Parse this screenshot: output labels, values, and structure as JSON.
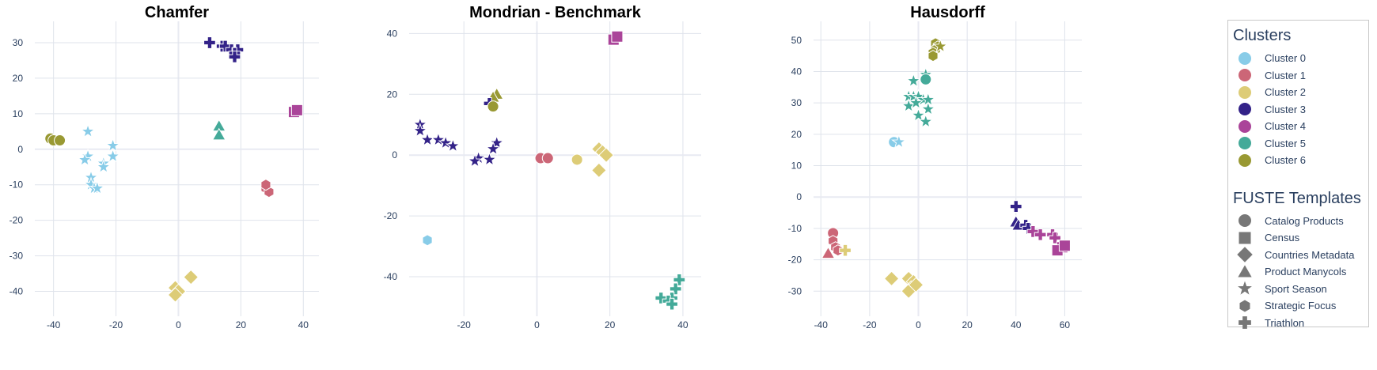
{
  "legend": {
    "clusters_title": "Clusters",
    "templates_title": "FUSTE Templates",
    "clusters": [
      {
        "label": "Cluster 0",
        "color": "#88cce8"
      },
      {
        "label": "Cluster 1",
        "color": "#cc6677"
      },
      {
        "label": "Cluster 2",
        "color": "#ddcc77"
      },
      {
        "label": "Cluster 3",
        "color": "#332288"
      },
      {
        "label": "Cluster 4",
        "color": "#aa4499"
      },
      {
        "label": "Cluster 5",
        "color": "#44aa99"
      },
      {
        "label": "Cluster 6",
        "color": "#999933"
      }
    ],
    "templates": [
      {
        "label": "Catalog Products",
        "symbol": "circle"
      },
      {
        "label": "Census",
        "symbol": "square"
      },
      {
        "label": "Countries Metadata",
        "symbol": "diamond"
      },
      {
        "label": "Product Manycols",
        "symbol": "triangle"
      },
      {
        "label": "Sport Season",
        "symbol": "star"
      },
      {
        "label": "Strategic Focus",
        "symbol": "hexagon"
      },
      {
        "label": "Triathlon",
        "symbol": "cross"
      }
    ]
  },
  "chart_data": [
    {
      "type": "scatter",
      "title": "Chamfer",
      "xlim": [
        -46,
        45
      ],
      "ylim": [
        -47,
        36
      ],
      "xticks": [
        -40,
        -20,
        0,
        20,
        40
      ],
      "yticks": [
        -40,
        -30,
        -20,
        -10,
        0,
        10,
        20,
        30
      ],
      "points": [
        {
          "x": 10,
          "y": 30,
          "c": 3,
          "s": "cross"
        },
        {
          "x": 14,
          "y": 29,
          "c": 3,
          "s": "cross"
        },
        {
          "x": 15,
          "y": 29,
          "c": 3,
          "s": "cross"
        },
        {
          "x": 17,
          "y": 28,
          "c": 3,
          "s": "cross"
        },
        {
          "x": 19,
          "y": 28,
          "c": 3,
          "s": "cross"
        },
        {
          "x": 18,
          "y": 27,
          "c": 3,
          "s": "cross"
        },
        {
          "x": 18,
          "y": 26,
          "c": 3,
          "s": "cross"
        },
        {
          "x": 37,
          "y": 10.5,
          "c": 4,
          "s": "square"
        },
        {
          "x": 38,
          "y": 11,
          "c": 4,
          "s": "square"
        },
        {
          "x": 13,
          "y": 6.5,
          "c": 5,
          "s": "triangle"
        },
        {
          "x": 13,
          "y": 4,
          "c": 5,
          "s": "triangle"
        },
        {
          "x": 28,
          "y": -11,
          "c": 1,
          "s": "hexagon"
        },
        {
          "x": 29,
          "y": -12,
          "c": 1,
          "s": "hexagon"
        },
        {
          "x": 28,
          "y": -10,
          "c": 1,
          "s": "hexagon"
        },
        {
          "x": -41,
          "y": 3,
          "c": 6,
          "s": "circle"
        },
        {
          "x": -40,
          "y": 2.5,
          "c": 6,
          "s": "circle"
        },
        {
          "x": -38,
          "y": 2.5,
          "c": 6,
          "s": "circle"
        },
        {
          "x": -29,
          "y": 5,
          "c": 0,
          "s": "star"
        },
        {
          "x": -21,
          "y": 1,
          "c": 0,
          "s": "star"
        },
        {
          "x": -21,
          "y": -2,
          "c": 0,
          "s": "star"
        },
        {
          "x": -29,
          "y": -2,
          "c": 0,
          "s": "star"
        },
        {
          "x": -30,
          "y": -3,
          "c": 0,
          "s": "star"
        },
        {
          "x": -24,
          "y": -4,
          "c": 0,
          "s": "star"
        },
        {
          "x": -24,
          "y": -5,
          "c": 0,
          "s": "star"
        },
        {
          "x": -28,
          "y": -8,
          "c": 0,
          "s": "star"
        },
        {
          "x": -28,
          "y": -10,
          "c": 0,
          "s": "star"
        },
        {
          "x": -27,
          "y": -11,
          "c": 0,
          "s": "star"
        },
        {
          "x": -26,
          "y": -11,
          "c": 0,
          "s": "star"
        },
        {
          "x": 4,
          "y": -36,
          "c": 2,
          "s": "diamond"
        },
        {
          "x": -1,
          "y": -39,
          "c": 2,
          "s": "diamond"
        },
        {
          "x": 0,
          "y": -40,
          "c": 2,
          "s": "diamond"
        },
        {
          "x": -1,
          "y": -41,
          "c": 2,
          "s": "diamond"
        }
      ]
    },
    {
      "type": "scatter",
      "title": "Mondrian - Benchmark",
      "xlim": [
        -35,
        45
      ],
      "ylim": [
        -53,
        44
      ],
      "xticks": [
        -20,
        0,
        20,
        40
      ],
      "yticks": [
        -40,
        -20,
        0,
        20,
        40
      ],
      "points": [
        {
          "x": 21,
          "y": 38,
          "c": 4,
          "s": "square"
        },
        {
          "x": 22,
          "y": 39,
          "c": 4,
          "s": "square"
        },
        {
          "x": -11,
          "y": 20,
          "c": 6,
          "s": "triangle"
        },
        {
          "x": -12,
          "y": 19,
          "c": 6,
          "s": "triangle"
        },
        {
          "x": -13,
          "y": 17,
          "c": 3,
          "s": "cross"
        },
        {
          "x": -12,
          "y": 16,
          "c": 6,
          "s": "circle"
        },
        {
          "x": -32,
          "y": 10,
          "c": 3,
          "s": "star"
        },
        {
          "x": -32,
          "y": 8,
          "c": 3,
          "s": "star"
        },
        {
          "x": -30,
          "y": 5,
          "c": 3,
          "s": "star"
        },
        {
          "x": -27,
          "y": 5,
          "c": 3,
          "s": "star"
        },
        {
          "x": -25,
          "y": 4,
          "c": 3,
          "s": "star"
        },
        {
          "x": -23,
          "y": 3,
          "c": 3,
          "s": "star"
        },
        {
          "x": -11,
          "y": 4,
          "c": 3,
          "s": "star"
        },
        {
          "x": -12,
          "y": 2,
          "c": 3,
          "s": "star"
        },
        {
          "x": -16,
          "y": -1,
          "c": 3,
          "s": "star"
        },
        {
          "x": -17,
          "y": -2,
          "c": 3,
          "s": "star"
        },
        {
          "x": -13,
          "y": -1.5,
          "c": 3,
          "s": "star"
        },
        {
          "x": 1,
          "y": -1,
          "c": 1,
          "s": "circle"
        },
        {
          "x": 3,
          "y": -1,
          "c": 1,
          "s": "circle"
        },
        {
          "x": 11,
          "y": -1.5,
          "c": 2,
          "s": "circle"
        },
        {
          "x": 17,
          "y": 2,
          "c": 2,
          "s": "diamond"
        },
        {
          "x": 18,
          "y": 1,
          "c": 2,
          "s": "diamond"
        },
        {
          "x": 19,
          "y": 0,
          "c": 2,
          "s": "diamond"
        },
        {
          "x": 17,
          "y": -5,
          "c": 2,
          "s": "diamond"
        },
        {
          "x": -30,
          "y": -28,
          "c": 0,
          "s": "hexagon"
        },
        {
          "x": 39,
          "y": -41,
          "c": 5,
          "s": "cross"
        },
        {
          "x": 38,
          "y": -44,
          "c": 5,
          "s": "cross"
        },
        {
          "x": 34,
          "y": -47,
          "c": 5,
          "s": "cross"
        },
        {
          "x": 37,
          "y": -47,
          "c": 5,
          "s": "cross"
        },
        {
          "x": 36,
          "y": -48,
          "c": 5,
          "s": "cross"
        },
        {
          "x": 37,
          "y": -49,
          "c": 5,
          "s": "cross"
        }
      ]
    },
    {
      "type": "scatter",
      "title": "Hausdorff",
      "xlim": [
        -43,
        67
      ],
      "ylim": [
        -38,
        56
      ],
      "xticks": [
        -40,
        -20,
        0,
        20,
        40,
        60
      ],
      "yticks": [
        -30,
        -20,
        -10,
        0,
        10,
        20,
        30,
        40,
        50
      ],
      "points": [
        {
          "x": 7,
          "y": 49,
          "c": 6,
          "s": "hexagon"
        },
        {
          "x": 8,
          "y": 48,
          "c": 6,
          "s": "hexagon"
        },
        {
          "x": 7,
          "y": 47,
          "c": 6,
          "s": "hexagon"
        },
        {
          "x": 6,
          "y": 46,
          "c": 6,
          "s": "hexagon"
        },
        {
          "x": 6,
          "y": 45,
          "c": 6,
          "s": "hexagon"
        },
        {
          "x": 9,
          "y": 48,
          "c": 6,
          "s": "star"
        },
        {
          "x": -2,
          "y": 37,
          "c": 5,
          "s": "star"
        },
        {
          "x": 3,
          "y": 39,
          "c": 5,
          "s": "star"
        },
        {
          "x": 3,
          "y": 37.5,
          "c": 5,
          "s": "circle"
        },
        {
          "x": -4,
          "y": 32,
          "c": 5,
          "s": "star"
        },
        {
          "x": -2,
          "y": 32,
          "c": 5,
          "s": "star"
        },
        {
          "x": 0,
          "y": 32,
          "c": 5,
          "s": "star"
        },
        {
          "x": 2,
          "y": 31,
          "c": 5,
          "s": "star"
        },
        {
          "x": 4,
          "y": 31,
          "c": 5,
          "s": "star"
        },
        {
          "x": -4,
          "y": 29,
          "c": 5,
          "s": "star"
        },
        {
          "x": -1,
          "y": 30,
          "c": 5,
          "s": "star"
        },
        {
          "x": 4,
          "y": 28,
          "c": 5,
          "s": "star"
        },
        {
          "x": 0,
          "y": 26,
          "c": 5,
          "s": "star"
        },
        {
          "x": 3,
          "y": 24,
          "c": 5,
          "s": "star"
        },
        {
          "x": -10,
          "y": 17.5,
          "c": 0,
          "s": "circle"
        },
        {
          "x": -8,
          "y": 17.5,
          "c": 0,
          "s": "star"
        },
        {
          "x": 40,
          "y": -3,
          "c": 3,
          "s": "cross"
        },
        {
          "x": 40,
          "y": -8,
          "c": 3,
          "s": "triangle"
        },
        {
          "x": 41,
          "y": -9,
          "c": 3,
          "s": "triangle"
        },
        {
          "x": 44,
          "y": -9,
          "c": 3,
          "s": "cross"
        },
        {
          "x": 45,
          "y": -10,
          "c": 3,
          "s": "cross"
        },
        {
          "x": 47,
          "y": -11,
          "c": 4,
          "s": "cross"
        },
        {
          "x": 50,
          "y": -12,
          "c": 4,
          "s": "cross"
        },
        {
          "x": 55,
          "y": -12,
          "c": 4,
          "s": "cross"
        },
        {
          "x": 56,
          "y": -13,
          "c": 4,
          "s": "cross"
        },
        {
          "x": 59,
          "y": -16,
          "c": 4,
          "s": "square"
        },
        {
          "x": 57,
          "y": -17,
          "c": 4,
          "s": "square"
        },
        {
          "x": 60,
          "y": -15.5,
          "c": 4,
          "s": "square"
        },
        {
          "x": -35,
          "y": -11.5,
          "c": 1,
          "s": "circle"
        },
        {
          "x": -35,
          "y": -14,
          "c": 1,
          "s": "hexagon"
        },
        {
          "x": -34,
          "y": -16,
          "c": 1,
          "s": "hexagon"
        },
        {
          "x": -33,
          "y": -17,
          "c": 1,
          "s": "hexagon"
        },
        {
          "x": -37,
          "y": -18,
          "c": 1,
          "s": "triangle"
        },
        {
          "x": -30,
          "y": -17,
          "c": 2,
          "s": "cross"
        },
        {
          "x": -11,
          "y": -26,
          "c": 2,
          "s": "diamond"
        },
        {
          "x": -4,
          "y": -26,
          "c": 2,
          "s": "diamond"
        },
        {
          "x": -2,
          "y": -27,
          "c": 2,
          "s": "diamond"
        },
        {
          "x": -3,
          "y": -29,
          "c": 2,
          "s": "diamond"
        },
        {
          "x": -4,
          "y": -30,
          "c": 2,
          "s": "diamond"
        },
        {
          "x": -1,
          "y": -28,
          "c": 2,
          "s": "diamond"
        }
      ]
    }
  ]
}
